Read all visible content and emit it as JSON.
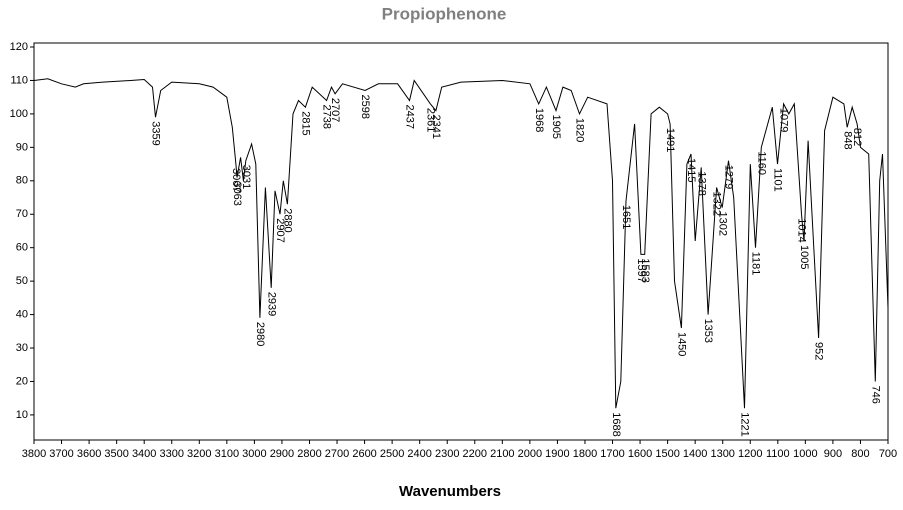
{
  "chart_data": {
    "type": "line",
    "title": "Propiophenone",
    "x_label": "Wavenumbers",
    "color": "#000000",
    "x": [
      3800,
      3750,
      3700,
      3650,
      3620,
      3550,
      3450,
      3400,
      3370,
      3359,
      3340,
      3300,
      3200,
      3150,
      3100,
      3080,
      3067,
      3063,
      3050,
      3040,
      3031,
      3010,
      2995,
      2980,
      2960,
      2939,
      2925,
      2907,
      2895,
      2880,
      2860,
      2840,
      2815,
      2790,
      2738,
      2720,
      2707,
      2680,
      2598,
      2550,
      2480,
      2437,
      2420,
      2361,
      2341,
      2320,
      2250,
      2100,
      2000,
      1968,
      1940,
      1905,
      1880,
      1850,
      1820,
      1790,
      1720,
      1700,
      1688,
      1670,
      1651,
      1620,
      1597,
      1583,
      1560,
      1530,
      1500,
      1491,
      1475,
      1450,
      1430,
      1415,
      1400,
      1378,
      1353,
      1322,
      1302,
      1279,
      1260,
      1221,
      1200,
      1181,
      1160,
      1120,
      1101,
      1079,
      1060,
      1040,
      1014,
      1005,
      990,
      952,
      930,
      900,
      860,
      848,
      830,
      812,
      800,
      770,
      746,
      730,
      720,
      700
    ],
    "y": [
      110,
      110.5,
      109,
      108,
      109,
      109.5,
      110,
      110.3,
      108,
      99,
      107,
      109.5,
      109,
      108,
      105,
      96,
      85,
      81,
      87,
      80,
      86,
      91,
      85,
      39,
      78,
      48,
      77,
      70,
      80,
      73,
      100,
      104,
      102,
      108,
      104,
      108,
      106,
      109,
      107,
      109,
      109,
      104,
      110,
      103,
      101,
      108,
      109.5,
      110,
      109,
      103,
      108,
      101,
      108,
      107,
      100,
      105,
      103,
      80,
      12,
      20,
      74,
      97,
      58,
      58,
      100,
      102,
      100,
      97,
      50,
      36,
      85,
      88,
      62,
      84,
      40,
      78,
      72,
      86,
      75,
      12,
      85,
      60,
      90,
      102,
      85,
      103,
      100,
      103,
      70,
      62,
      92,
      33,
      95,
      105,
      103,
      96,
      102,
      97,
      90,
      88,
      20,
      80,
      88,
      42
    ],
    "peaks": [
      3359,
      3067,
      3063,
      3031,
      2980,
      2939,
      2907,
      2880,
      2815,
      2738,
      2707,
      2598,
      2437,
      2361,
      2341,
      1968,
      1905,
      1820,
      1688,
      1651,
      1597,
      1583,
      1491,
      1450,
      1415,
      1378,
      1353,
      1322,
      1302,
      1279,
      1221,
      1181,
      1160,
      1101,
      1079,
      1014,
      1005,
      952,
      848,
      812,
      746
    ],
    "xlim": [
      3800,
      700
    ],
    "ylim": [
      2.5,
      121.2
    ],
    "xticks": [
      3800,
      3700,
      3600,
      3500,
      3400,
      3300,
      3200,
      3100,
      3000,
      2900,
      2800,
      2700,
      2600,
      2500,
      2400,
      2300,
      2200,
      2100,
      2000,
      1900,
      1800,
      1700,
      1600,
      1500,
      1400,
      1300,
      1200,
      1100,
      1000,
      900,
      800,
      700
    ],
    "yticks": [
      10,
      20,
      30,
      40,
      50,
      60,
      70,
      80,
      90,
      100,
      110,
      120
    ]
  }
}
